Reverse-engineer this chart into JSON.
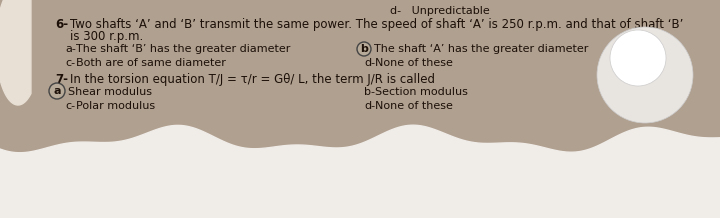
{
  "bg_color": "#b0a090",
  "top_text_left": "d-   Unpredictable",
  "q6_number": "6-",
  "q6_line1": "Two shafts ‘A’ and ‘B’ transmit the same power. The speed of shaft ‘A’ is 250 r.p.m. and that of shaft ‘B’",
  "q6_line2": "is 300 r.p.m.",
  "q6_a_text": "The shaft ‘B’ has the greater diameter",
  "q6_b_text": "The shaft ‘A’ has the greater diameter",
  "q6_c_text": "Both are of same diameter",
  "q6_d_text": "None of these",
  "q7_number": "7-",
  "q7_line1": "In the torsion equation T/J = τ/r = Gθ/ L, the term J/R is called",
  "q7_a_text": "Shear modulus",
  "q7_b_text": "Section modulus",
  "q7_c_text": "Polar modulus",
  "q7_d_text": "None of these",
  "text_color": "#1c1008",
  "circle_fill": "#b8aa98",
  "circle_edge": "#444444",
  "font_size_q": 8.5,
  "font_size_opt": 8.0,
  "left_blob_color": "#e8e0d5",
  "bottom_wave_color": "#f0ece8",
  "right_circle_color": "#e8e4e0"
}
